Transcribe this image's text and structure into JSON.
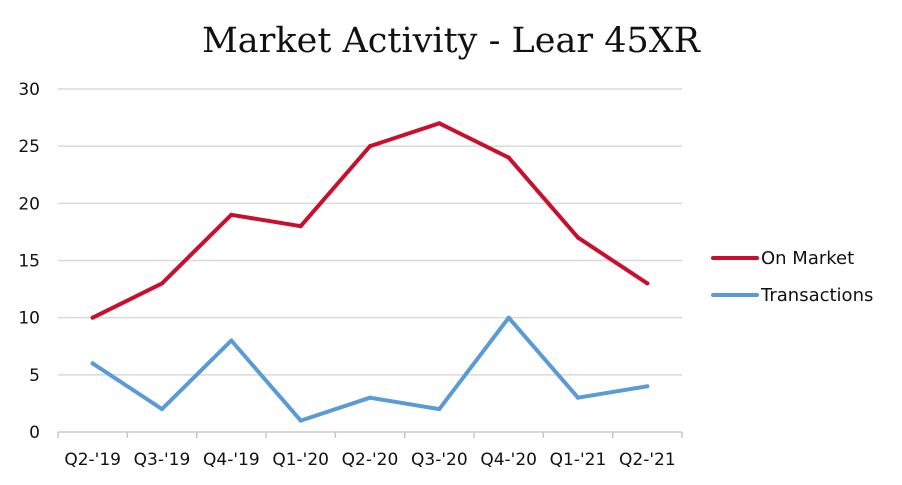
{
  "chart_data": {
    "type": "line",
    "title": "Market Activity - Lear 45XR",
    "xlabel": "",
    "ylabel": "",
    "categories": [
      "Q2-'19",
      "Q3-'19",
      "Q4-'19",
      "Q1-'20",
      "Q2-'20",
      "Q3-'20",
      "Q4-'20",
      "Q1-'21",
      "Q2-'21"
    ],
    "y_ticks": [
      "0",
      "5",
      "10",
      "15",
      "20",
      "25",
      "30"
    ],
    "ylim": [
      0,
      30
    ],
    "grid": true,
    "legend": "right",
    "series": [
      {
        "name": "On Market",
        "color": "#c8102e",
        "values": [
          10,
          13,
          19,
          18,
          25,
          27,
          24,
          17,
          13
        ]
      },
      {
        "name": "Transactions",
        "color": "#5b9bd5",
        "values": [
          6,
          2,
          8,
          1,
          3,
          2,
          10,
          3,
          4
        ]
      }
    ]
  }
}
